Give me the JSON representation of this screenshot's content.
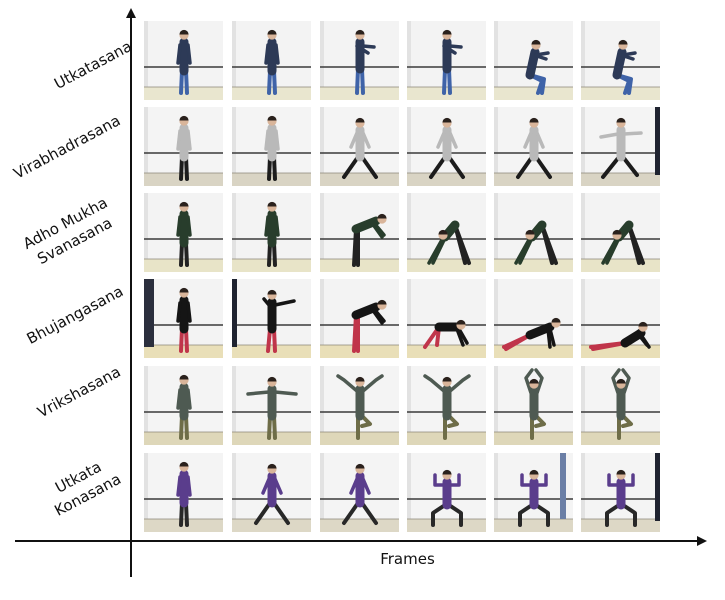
{
  "figure": {
    "x_axis_label": "Frames",
    "rows": [
      {
        "label": "Utkatasana",
        "wall": "#f3f3f3",
        "floor": "#e9e6cf",
        "top": "#2d3a57",
        "bottom": "#3f63a8",
        "poses": [
          "stand",
          "stand",
          "reach",
          "reach",
          "squat",
          "squat"
        ]
      },
      {
        "label": "Virabhadrasana",
        "wall": "#f4f4f4",
        "floor": "#d9d4c4",
        "top": "#b9b9b9",
        "bottom": "#1c1c1c",
        "poses": [
          "stand",
          "stand",
          "wide",
          "wide",
          "wide",
          "warrior"
        ]
      },
      {
        "label": "Adho Mukha\nSvanasana",
        "wall": "#f3f3f3",
        "floor": "#e8e4c8",
        "top": "#283d2c",
        "bottom": "#222222",
        "poses": [
          "stand",
          "stand",
          "bend",
          "dog",
          "dog",
          "dog"
        ]
      },
      {
        "label": "Bhujangasana",
        "wall": "#f3f3f3",
        "floor": "#e9dfb8",
        "top": "#151515",
        "bottom": "#c0354a",
        "poses": [
          "stand",
          "armout",
          "bend",
          "crouch",
          "plank",
          "lie"
        ]
      },
      {
        "label": "Vrikshasana",
        "wall": "#f4f4f4",
        "floor": "#ded7b9",
        "top": "#4e5a52",
        "bottom": "#6e6d48",
        "poses": [
          "stand",
          "tee",
          "armsup",
          "armsup",
          "treeup",
          "treeup"
        ]
      },
      {
        "label": "Utkata\nKonasana",
        "wall": "#f4f4f4",
        "floor": "#ddd8c6",
        "top": "#5a3d8c",
        "bottom": "#282828",
        "poses": [
          "stand",
          "wide",
          "wide",
          "goddess",
          "goddess",
          "goddess"
        ]
      }
    ]
  }
}
